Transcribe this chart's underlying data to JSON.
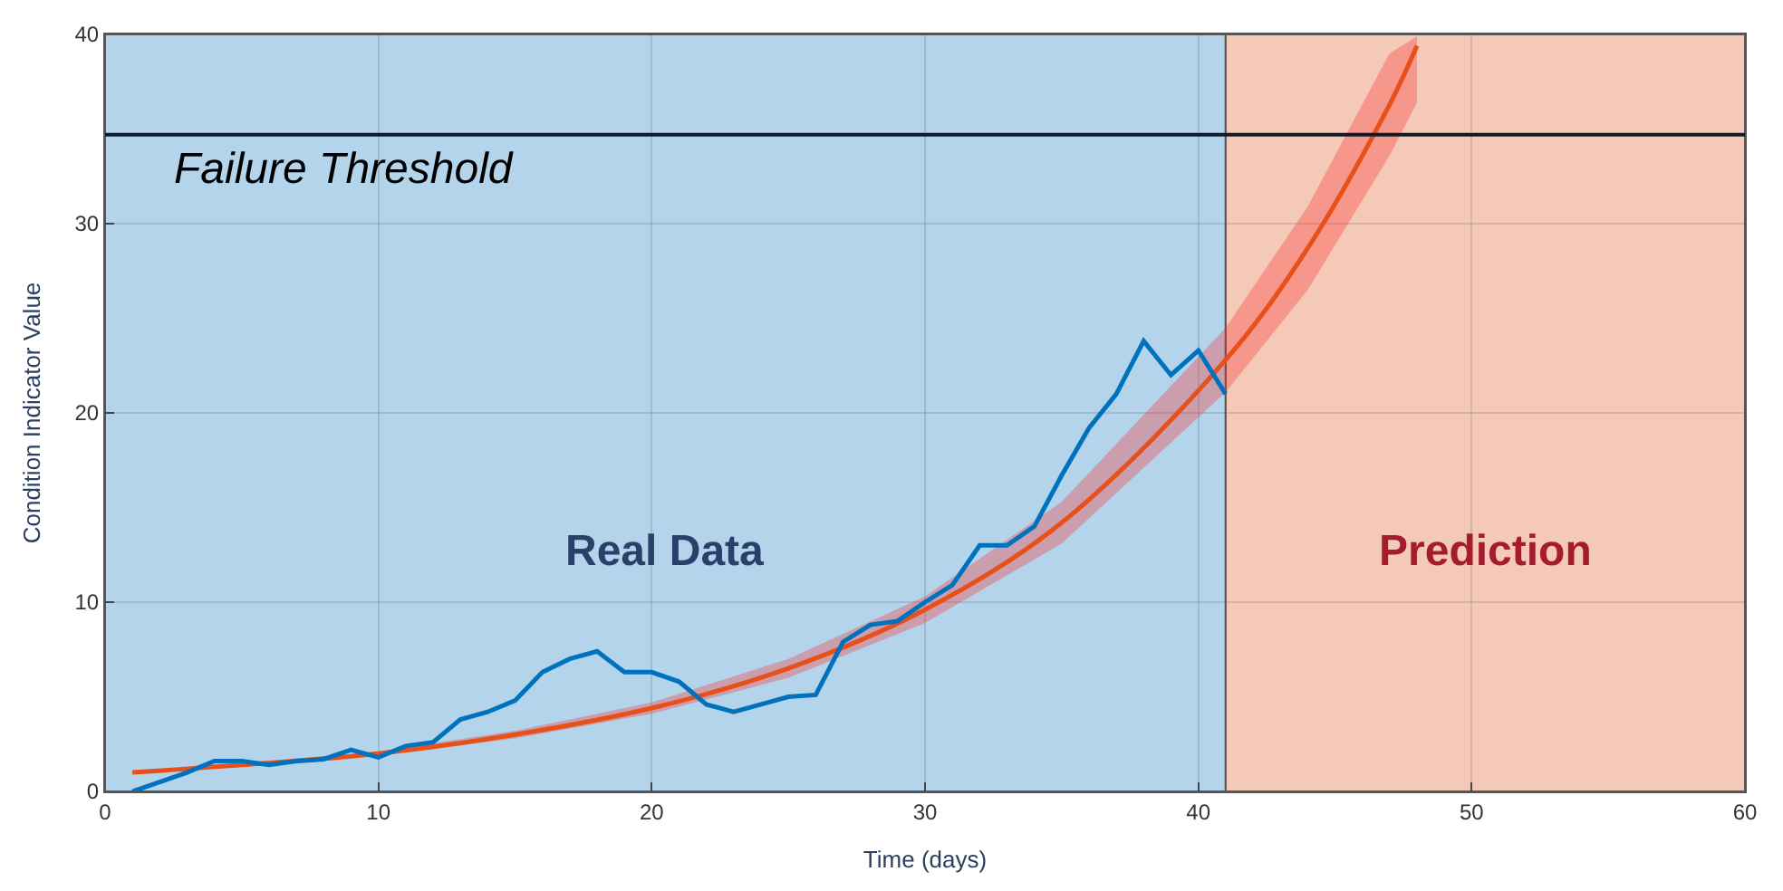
{
  "chart_data": {
    "type": "line",
    "xlabel": "Time (days)",
    "ylabel": "Condition Indicator Value",
    "xlim": [
      0,
      60
    ],
    "ylim": [
      0,
      40
    ],
    "xticks": [
      0,
      10,
      20,
      30,
      40,
      50,
      60
    ],
    "yticks": [
      0,
      10,
      20,
      30,
      40
    ],
    "grid": true,
    "marker": "none",
    "line_style": "solid",
    "series": [
      {
        "color": "#0072bd",
        "x": [
          1,
          2,
          3,
          4,
          5,
          6,
          7,
          8,
          9,
          10,
          11,
          12,
          13,
          14,
          15,
          16,
          17,
          18,
          19,
          20,
          21,
          22,
          23,
          24,
          25,
          26,
          27,
          28,
          29,
          30,
          31,
          32,
          33,
          34,
          35,
          36,
          37,
          38,
          39,
          40,
          41
        ],
        "values": [
          0,
          0.5,
          1.0,
          1.6,
          1.6,
          1.4,
          1.6,
          1.7,
          2.2,
          1.8,
          2.4,
          2.6,
          3.8,
          4.2,
          4.8,
          6.3,
          7.0,
          7.4,
          6.3,
          6.3,
          5.8,
          4.6,
          4.2,
          4.6,
          5.0,
          5.1,
          7.9,
          8.8,
          9.0,
          10.0,
          10.9,
          13.0,
          13.0,
          14.0,
          16.7,
          19.2,
          21.0,
          23.8,
          22.0,
          23.3,
          21.0
        ]
      },
      {
        "color": "#e8501a",
        "x": [
          1,
          5,
          10,
          15,
          20,
          25,
          30,
          35,
          41,
          44,
          47,
          48
        ],
        "values": [
          1.0,
          1.4,
          2.0,
          3.0,
          4.4,
          6.5,
          9.6,
          14.2,
          22.8,
          28.7,
          36.3,
          39.4
        ],
        "lower": [
          1.0,
          1.3,
          1.9,
          2.8,
          4.1,
          6.0,
          8.9,
          13.1,
          21.1,
          26.5,
          33.6,
          36.4
        ],
        "upper": [
          1.0,
          1.5,
          2.1,
          3.2,
          4.7,
          7.0,
          10.3,
          15.3,
          24.5,
          30.9,
          39.0,
          39.9
        ]
      }
    ],
    "bands": [
      {
        "axis": "x",
        "from": 0,
        "to": 41,
        "label": "Real Data",
        "color": "#b3d4ea"
      },
      {
        "axis": "x",
        "from": 41,
        "to": 60,
        "label": "Prediction",
        "color": "#f4c9b8"
      }
    ],
    "ref_lines": [
      {
        "axis": "y",
        "value": 34.7,
        "label": "Failure Threshold",
        "color": "#0d1b2a",
        "line_style": "solid"
      }
    ]
  }
}
